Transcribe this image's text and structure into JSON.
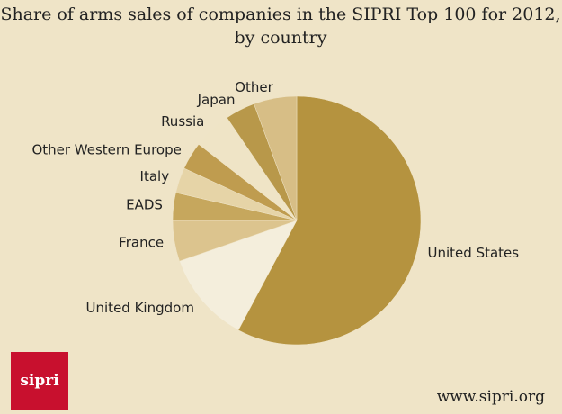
{
  "chart_data": {
    "type": "pie",
    "title": "Share of arms sales of companies in the SIPRI Top 100 for 2012,",
    "subtitle": "by country",
    "categories": [
      "United States",
      "United Kingdom",
      "France",
      "EADS",
      "Italy",
      "Other Western Europe",
      "Russia",
      "Japan",
      "Other"
    ],
    "values": [
      57.8,
      11.9,
      5.3,
      3.6,
      3.3,
      3.6,
      5,
      3.9,
      5.6
    ],
    "colors": [
      "#b5933f",
      "#f4eedc",
      "#dcc48e",
      "#c6a75d",
      "#e6d4a7",
      "#bf9c4f",
      "#efe4c6",
      "#b8984a",
      "#d7be86"
    ],
    "logo": "sipri",
    "website": "www.sipri.org"
  }
}
